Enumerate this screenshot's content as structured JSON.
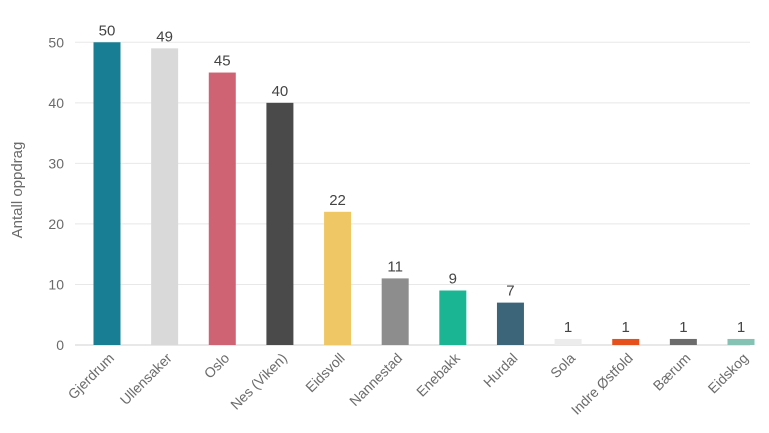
{
  "chart_data": {
    "type": "bar",
    "ylabel": "Antall oppdrag",
    "xlabel": "",
    "ylim": [
      0,
      55
    ],
    "yticks": [
      0,
      10,
      20,
      30,
      40,
      50
    ],
    "grid": true,
    "categories": [
      "Gjerdrum",
      "Ullensaker",
      "Oslo",
      "Nes (Viken)",
      "Eidsvoll",
      "Nannestad",
      "Enebakk",
      "Hurdal",
      "Sola",
      "Indre Østfold",
      "Bærum",
      "Eidskog"
    ],
    "values": [
      50,
      49,
      45,
      40,
      22,
      11,
      9,
      7,
      1,
      1,
      1,
      1
    ],
    "colors": [
      "#177e93",
      "#d9d9d9",
      "#cf6373",
      "#4a4a4a",
      "#efc865",
      "#8d8d8d",
      "#1ab593",
      "#3d6579",
      "#ececec",
      "#e5501c",
      "#6c6c6c",
      "#85c2b4"
    ]
  }
}
